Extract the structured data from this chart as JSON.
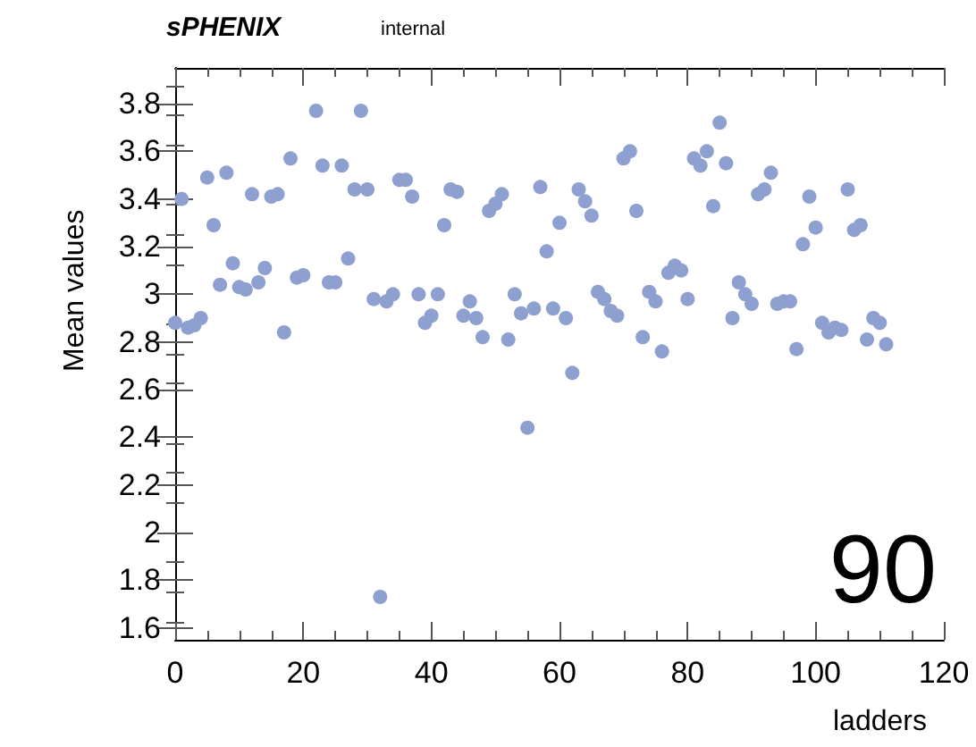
{
  "chart_data": {
    "type": "scatter",
    "title": "sPHENIX",
    "subtitle": "internal",
    "xlabel": "ladders",
    "ylabel": "Mean values",
    "annotations": [
      "90"
    ],
    "x": [
      0,
      1,
      2,
      3,
      4,
      5,
      6,
      7,
      8,
      9,
      10,
      11,
      12,
      13,
      14,
      15,
      16,
      17,
      18,
      19,
      20,
      22,
      23,
      24,
      25,
      26,
      27,
      28,
      29,
      30,
      31,
      32,
      33,
      34,
      35,
      36,
      37,
      38,
      39,
      40,
      41,
      42,
      43,
      44,
      45,
      46,
      47,
      48,
      49,
      50,
      51,
      52,
      53,
      54,
      55,
      56,
      57,
      58,
      59,
      60,
      61,
      62,
      63,
      64,
      65,
      66,
      67,
      68,
      69,
      70,
      71,
      72,
      73,
      74,
      75,
      76,
      77,
      78,
      79,
      80,
      81,
      82,
      83,
      84,
      85,
      86,
      87,
      88,
      89,
      90,
      91,
      92,
      93,
      94,
      95,
      96,
      97,
      98,
      99,
      100,
      101,
      102,
      103,
      104,
      105,
      106,
      107,
      108,
      109,
      110,
      111
    ],
    "series": [
      {
        "color": "#8da0cf",
        "values": [
          2.88,
          3.4,
          2.86,
          2.87,
          2.9,
          3.49,
          3.29,
          3.04,
          3.51,
          3.13,
          3.03,
          3.02,
          3.42,
          3.05,
          3.11,
          3.41,
          3.42,
          2.84,
          3.57,
          3.07,
          3.08,
          3.77,
          3.54,
          3.05,
          3.05,
          3.54,
          3.15,
          3.44,
          3.77,
          3.44,
          2.98,
          1.73,
          2.97,
          3.0,
          3.48,
          3.48,
          3.41,
          3.0,
          2.88,
          2.91,
          3.0,
          3.29,
          3.44,
          3.43,
          2.91,
          2.97,
          2.9,
          2.82,
          3.35,
          3.38,
          3.42,
          2.81,
          3.0,
          2.92,
          2.44,
          2.94,
          3.45,
          3.18,
          2.94,
          3.3,
          2.9,
          2.67,
          3.44,
          3.39,
          3.33,
          3.01,
          2.98,
          2.93,
          2.91,
          3.57,
          3.6,
          3.35,
          2.82,
          3.01,
          2.97,
          2.76,
          3.09,
          3.12,
          3.1,
          2.98,
          3.57,
          3.54,
          3.6,
          3.37,
          3.72,
          3.55,
          2.9,
          3.05,
          3.0,
          2.96,
          3.42,
          3.44,
          3.51,
          2.96,
          2.97,
          2.97,
          2.77,
          3.21,
          3.41,
          3.28,
          2.88,
          2.84,
          2.86,
          2.85,
          3.44,
          3.27,
          3.29,
          2.81,
          2.9,
          2.88,
          2.79
        ]
      }
    ],
    "xlim": [
      0,
      120
    ],
    "xticks": [
      0,
      20,
      40,
      60,
      80,
      100,
      120
    ],
    "ylim": [
      1.55,
      3.95
    ],
    "yticks": [
      1.6,
      1.8,
      2,
      2.2,
      2.4,
      2.6,
      2.8,
      3,
      3.2,
      3.4,
      3.6,
      3.8
    ],
    "grid": false,
    "marker": "circle"
  }
}
